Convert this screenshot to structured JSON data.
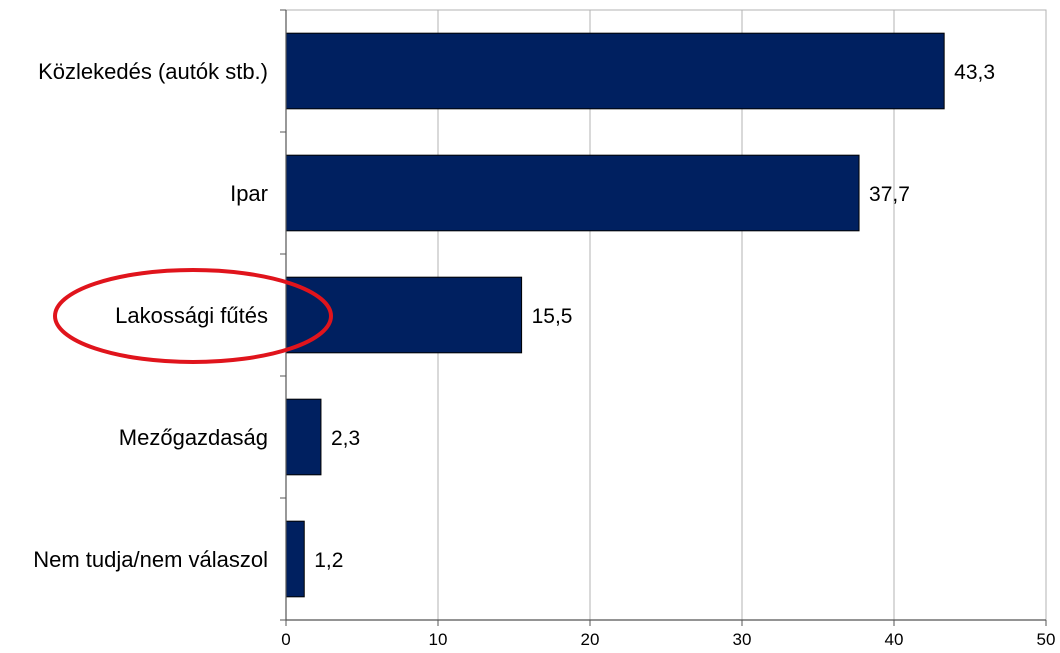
{
  "chart_data": {
    "type": "bar",
    "orientation": "horizontal",
    "categories": [
      "Közlekedés (autók stb.)",
      "Ipar",
      "Lakossági fűtés",
      "Mezőgazdaság",
      "Nem tudja/nem válaszol"
    ],
    "values": [
      43.3,
      37.7,
      15.5,
      2.3,
      1.2
    ],
    "value_labels": [
      "43,3",
      "37,7",
      "15,5",
      "2,3",
      "1,2"
    ],
    "x_ticks": [
      0,
      10,
      20,
      30,
      40,
      50
    ],
    "xlim": [
      0,
      50
    ],
    "grid": true,
    "bar_color": "#002060",
    "highlight": {
      "category": "Lakossági fűtés",
      "shape": "ellipse",
      "color": "#e0141c"
    },
    "title": "",
    "xlabel": "",
    "ylabel": ""
  }
}
